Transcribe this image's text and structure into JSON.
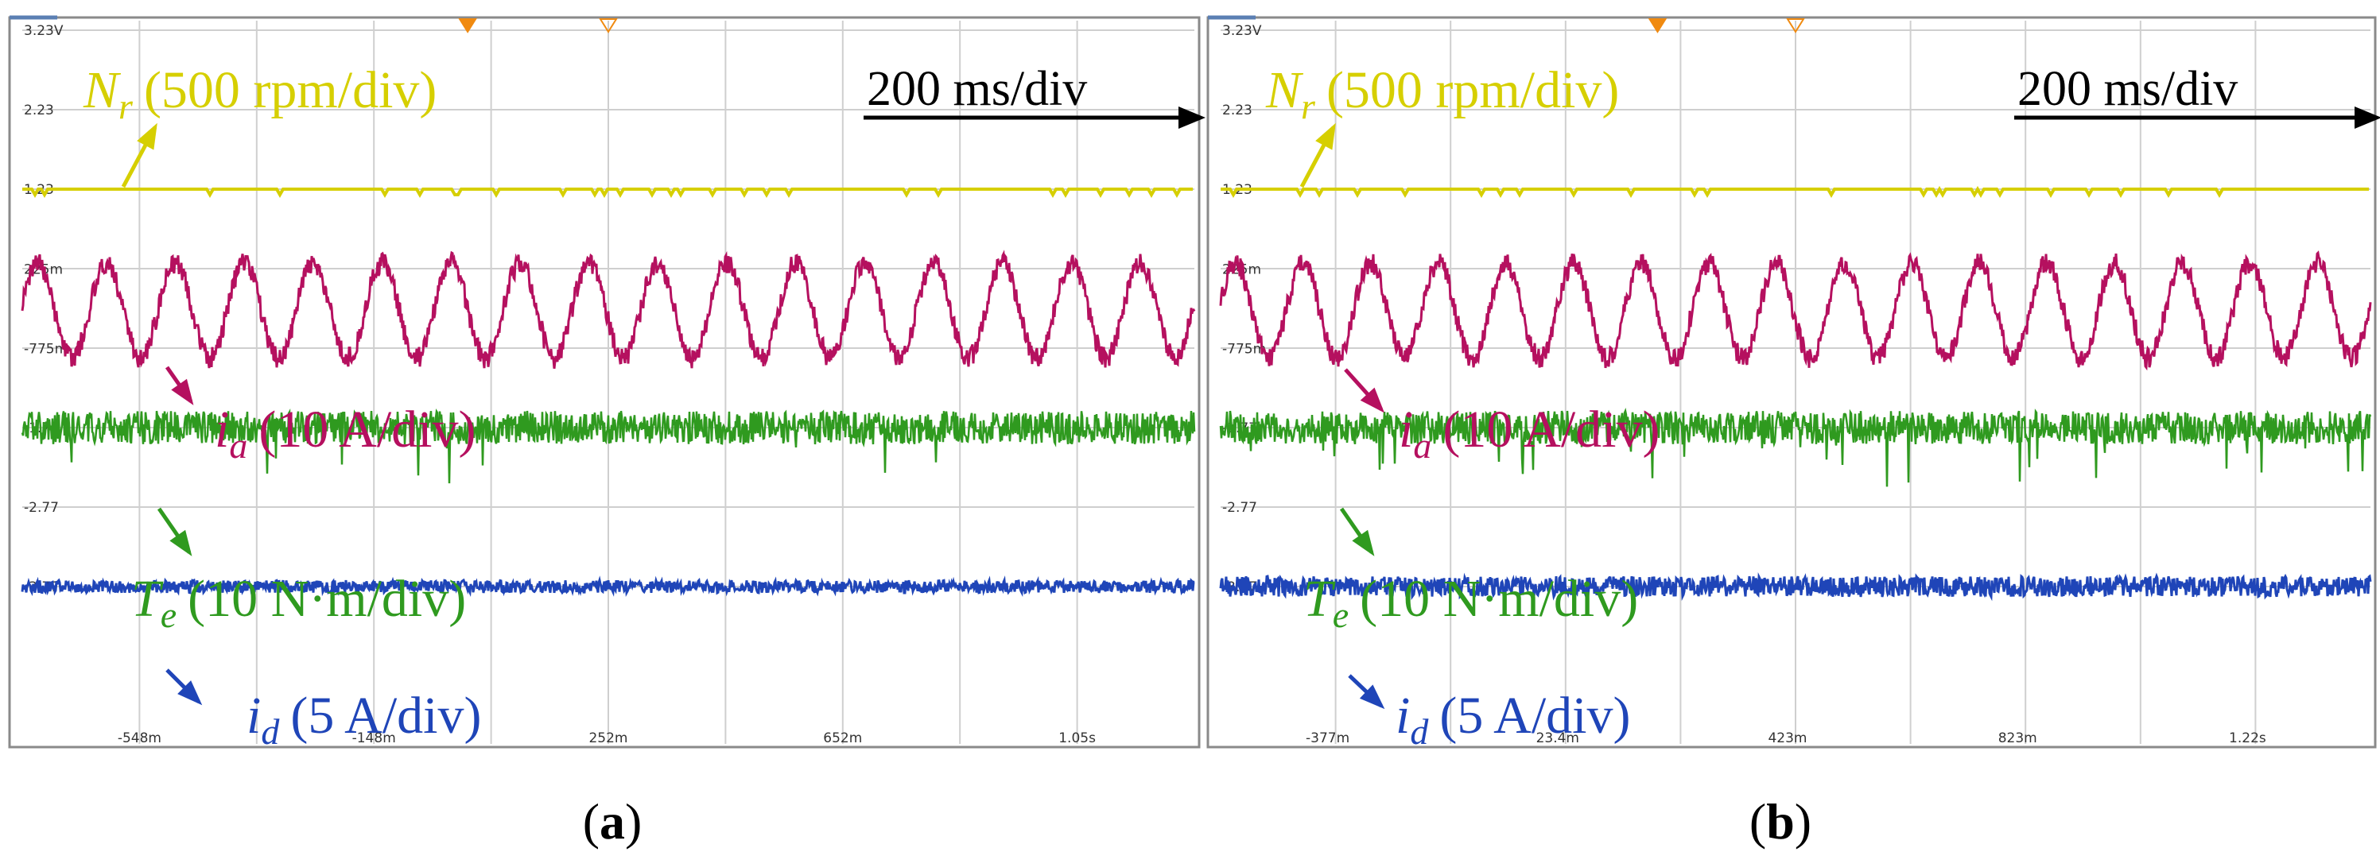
{
  "chart_data": [
    {
      "type": "line",
      "panel_label_open": "(",
      "panel_label_letter": "a",
      "panel_label_close": ")",
      "time_scale": "200 ms/div",
      "x_tick_labels": [
        "-548m",
        "-148m",
        "252m",
        "652m",
        "1.05s"
      ],
      "y_marker_labels": [
        "3.23V",
        "2.23",
        "1.23",
        "225m",
        "-775m",
        "-1.77",
        "-2.77",
        "-3.77"
      ],
      "traces": [
        {
          "name": "Nr",
          "symbol": "N",
          "subscript": "r",
          "scale": "(500 rpm/div)",
          "color": "#d6cf00",
          "level": 1.23
        },
        {
          "name": "ia",
          "symbol": "i",
          "subscript": "a",
          "scale": "(10 A/div)",
          "color": "#b5105f",
          "offset": -0.3,
          "amplitude": 0.6,
          "cycles": 17
        },
        {
          "name": "Te",
          "symbol": "T",
          "subscript": "e",
          "scale": "(10 N·m/div)",
          "color": "#2f9a1f",
          "level": -1.77
        },
        {
          "name": "id",
          "symbol": "i",
          "subscript": "d",
          "scale": "(5 A/div)",
          "color": "#1f45b8",
          "level": -3.77
        }
      ]
    },
    {
      "type": "line",
      "panel_label_open": "(",
      "panel_label_letter": "b",
      "panel_label_close": ")",
      "time_scale": "200 ms/div",
      "x_tick_labels": [
        "-377m",
        "23.4m",
        "423m",
        "823m",
        "1.22s"
      ],
      "y_marker_labels": [
        "3.23V",
        "2.23",
        "1.23",
        "225m",
        "-775m",
        "-1.77",
        "-2.77",
        "-3.77"
      ],
      "traces": [
        {
          "name": "Nr",
          "symbol": "N",
          "subscript": "r",
          "scale": "(500 rpm/div)",
          "color": "#d6cf00",
          "level": 1.23
        },
        {
          "name": "ia",
          "symbol": "i",
          "subscript": "a",
          "scale": "(10 A/div)",
          "color": "#b5105f",
          "offset": -0.3,
          "amplitude": 0.6,
          "cycles": 17
        },
        {
          "name": "Te",
          "symbol": "T",
          "subscript": "e",
          "scale": "(10 N·m/div)",
          "color": "#2f9a1f",
          "level": -1.77
        },
        {
          "name": "id",
          "symbol": "i",
          "subscript": "d",
          "scale": "(5 A/div)",
          "color": "#1f45b8",
          "level": -3.77
        }
      ]
    }
  ]
}
